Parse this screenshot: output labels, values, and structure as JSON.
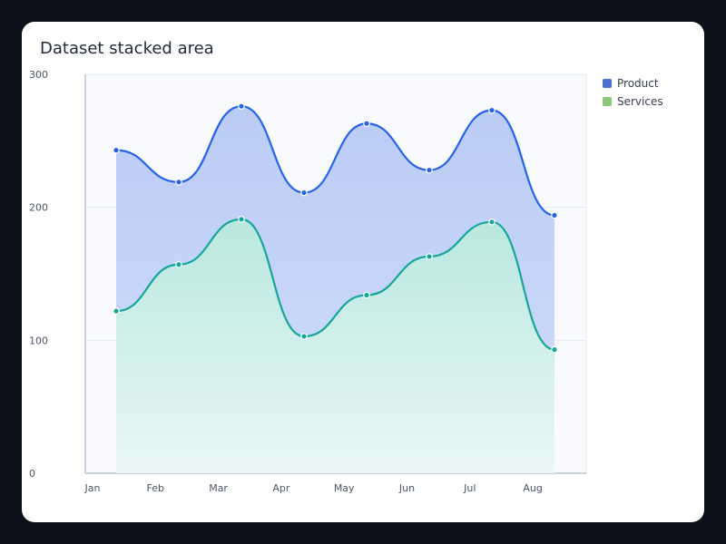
{
  "chart_data": {
    "type": "area",
    "title": "Dataset stacked area",
    "categories": [
      "Jan",
      "Feb",
      "Mar",
      "Apr",
      "May",
      "Jun",
      "Jul",
      "Aug"
    ],
    "ylim": [
      0,
      300
    ],
    "yticks": [
      0,
      100,
      200,
      300
    ],
    "grid": true,
    "legend_position": "top-right",
    "series": [
      {
        "name": "Product",
        "values": [
          243,
          219,
          276,
          211,
          263,
          228,
          273,
          194
        ],
        "color": "#2563eb",
        "legend_color": "#4a6fd1",
        "fill": "#bfcff8"
      },
      {
        "name": "Services",
        "values": [
          122,
          157,
          191,
          103,
          134,
          163,
          189,
          93
        ],
        "color": "#17a69a",
        "legend_color": "#8cc97a",
        "fill": "#c9ede6"
      }
    ]
  }
}
